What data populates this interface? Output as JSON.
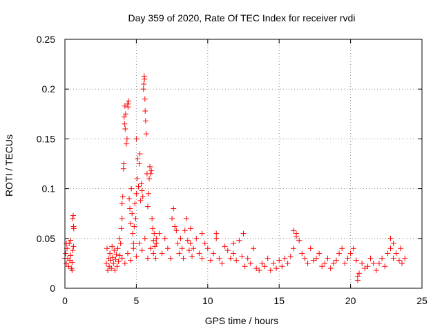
{
  "chart_data": {
    "type": "scatter",
    "title": "Day 359 of 2020, Rate Of TEC Index for receiver rvdi",
    "xlabel": "GPS time / hours",
    "ylabel": "ROTI / TECUs",
    "xlim": [
      0,
      25
    ],
    "ylim": [
      0,
      0.25
    ],
    "xticks": [
      0,
      5,
      10,
      15,
      20,
      25
    ],
    "xtick_labels": [
      "0",
      "5",
      "10",
      "15",
      "20",
      "25"
    ],
    "yticks": [
      0,
      0.05,
      0.1,
      0.15,
      0.2,
      0.25
    ],
    "ytick_labels": [
      "0",
      "0.05",
      "0.1",
      "0.15",
      "0.2",
      "0.25"
    ],
    "grid": true,
    "marker": "+",
    "series": [
      {
        "name": "ROTI",
        "color": "#ff0000",
        "points": [
          [
            0.0,
            0.03
          ],
          [
            0.05,
            0.035
          ],
          [
            0.1,
            0.025
          ],
          [
            0.15,
            0.04
          ],
          [
            0.2,
            0.03
          ],
          [
            0.25,
            0.022
          ],
          [
            0.3,
            0.045
          ],
          [
            0.35,
            0.028
          ],
          [
            0.4,
            0.033
          ],
          [
            0.45,
            0.02
          ],
          [
            0.5,
            0.026
          ],
          [
            0.55,
            0.038
          ],
          [
            0.6,
            0.042
          ],
          [
            0.6,
            0.062
          ],
          [
            0.55,
            0.07
          ],
          [
            0.58,
            0.073
          ],
          [
            0.62,
            0.06
          ],
          [
            0.5,
            0.018
          ],
          [
            0.4,
            0.048
          ],
          [
            0.1,
            0.045
          ],
          [
            2.9,
            0.025
          ],
          [
            2.95,
            0.04
          ],
          [
            3.0,
            0.018
          ],
          [
            3.05,
            0.03
          ],
          [
            3.1,
            0.022
          ],
          [
            3.15,
            0.035
          ],
          [
            3.2,
            0.028
          ],
          [
            3.25,
            0.02
          ],
          [
            3.3,
            0.042
          ],
          [
            3.35,
            0.031
          ],
          [
            3.4,
            0.025
          ],
          [
            3.45,
            0.038
          ],
          [
            3.5,
            0.018
          ],
          [
            3.55,
            0.029
          ],
          [
            3.6,
            0.034
          ],
          [
            3.65,
            0.022
          ],
          [
            3.7,
            0.04
          ],
          [
            3.75,
            0.027
          ],
          [
            3.8,
            0.05
          ],
          [
            3.85,
            0.033
          ],
          [
            3.9,
            0.045
          ],
          [
            3.95,
            0.06
          ],
          [
            4.0,
            0.07
          ],
          [
            4.0,
            0.085
          ],
          [
            4.05,
            0.092
          ],
          [
            4.1,
            0.12
          ],
          [
            4.12,
            0.125
          ],
          [
            4.15,
            0.172
          ],
          [
            4.17,
            0.165
          ],
          [
            4.2,
            0.183
          ],
          [
            4.22,
            0.16
          ],
          [
            4.25,
            0.175
          ],
          [
            4.3,
            0.145
          ],
          [
            4.35,
            0.15
          ],
          [
            4.4,
            0.185
          ],
          [
            4.42,
            0.182
          ],
          [
            4.45,
            0.188
          ],
          [
            4.5,
            0.09
          ],
          [
            4.55,
            0.08
          ],
          [
            4.6,
            0.065
          ],
          [
            4.65,
            0.1
          ],
          [
            4.7,
            0.075
          ],
          [
            4.75,
            0.055
          ],
          [
            4.8,
            0.045
          ],
          [
            4.85,
            0.062
          ],
          [
            4.9,
            0.085
          ],
          [
            4.95,
            0.07
          ],
          [
            5.0,
            0.095
          ],
          [
            5.0,
            0.15
          ],
          [
            5.05,
            0.11
          ],
          [
            5.1,
            0.13
          ],
          [
            5.15,
            0.102
          ],
          [
            5.2,
            0.125
          ],
          [
            5.25,
            0.135
          ],
          [
            5.3,
            0.088
          ],
          [
            5.35,
            0.105
          ],
          [
            5.4,
            0.098
          ],
          [
            5.45,
            0.092
          ],
          [
            5.5,
            0.2
          ],
          [
            5.52,
            0.205
          ],
          [
            5.55,
            0.213
          ],
          [
            5.57,
            0.21
          ],
          [
            5.6,
            0.19
          ],
          [
            5.62,
            0.178
          ],
          [
            5.65,
            0.168
          ],
          [
            5.7,
            0.155
          ],
          [
            5.75,
            0.115
          ],
          [
            5.8,
            0.082
          ],
          [
            5.85,
            0.095
          ],
          [
            5.9,
            0.11
          ],
          [
            5.95,
            0.122
          ],
          [
            6.0,
            0.115
          ],
          [
            6.05,
            0.118
          ],
          [
            6.1,
            0.07
          ],
          [
            6.15,
            0.06
          ],
          [
            6.2,
            0.048
          ],
          [
            6.25,
            0.055
          ],
          [
            6.3,
            0.042
          ],
          [
            6.35,
            0.03
          ],
          [
            6.4,
            0.05
          ],
          [
            4.0,
            0.03
          ],
          [
            4.2,
            0.025
          ],
          [
            4.4,
            0.035
          ],
          [
            4.6,
            0.028
          ],
          [
            4.8,
            0.04
          ],
          [
            5.0,
            0.032
          ],
          [
            5.2,
            0.045
          ],
          [
            5.4,
            0.038
          ],
          [
            5.6,
            0.05
          ],
          [
            5.8,
            0.03
          ],
          [
            6.0,
            0.04
          ],
          [
            6.2,
            0.035
          ],
          [
            6.4,
            0.045
          ],
          [
            6.6,
            0.055
          ],
          [
            6.8,
            0.035
          ],
          [
            7.0,
            0.05
          ],
          [
            7.2,
            0.04
          ],
          [
            7.4,
            0.03
          ],
          [
            7.5,
            0.07
          ],
          [
            7.6,
            0.08
          ],
          [
            7.7,
            0.062
          ],
          [
            7.8,
            0.058
          ],
          [
            7.9,
            0.045
          ],
          [
            8.0,
            0.035
          ],
          [
            8.1,
            0.05
          ],
          [
            8.2,
            0.04
          ],
          [
            8.3,
            0.03
          ],
          [
            8.4,
            0.058
          ],
          [
            8.5,
            0.07
          ],
          [
            8.6,
            0.048
          ],
          [
            8.7,
            0.038
          ],
          [
            8.8,
            0.045
          ],
          [
            8.9,
            0.032
          ],
          [
            9.0,
            0.04
          ],
          [
            9.2,
            0.05
          ],
          [
            9.4,
            0.035
          ],
          [
            9.6,
            0.03
          ],
          [
            9.8,
            0.045
          ],
          [
            10.0,
            0.04
          ],
          [
            10.2,
            0.028
          ],
          [
            10.4,
            0.035
          ],
          [
            10.6,
            0.05
          ],
          [
            10.8,
            0.03
          ],
          [
            11.0,
            0.025
          ],
          [
            11.2,
            0.042
          ],
          [
            11.4,
            0.038
          ],
          [
            11.6,
            0.03
          ],
          [
            11.8,
            0.035
          ],
          [
            12.0,
            0.028
          ],
          [
            12.2,
            0.048
          ],
          [
            12.4,
            0.032
          ],
          [
            12.6,
            0.022
          ],
          [
            12.8,
            0.03
          ],
          [
            13.0,
            0.025
          ],
          [
            13.2,
            0.04
          ],
          [
            13.4,
            0.02
          ],
          [
            13.6,
            0.018
          ],
          [
            13.8,
            0.025
          ],
          [
            14.0,
            0.022
          ],
          [
            14.2,
            0.03
          ],
          [
            14.4,
            0.018
          ],
          [
            14.6,
            0.025
          ],
          [
            14.8,
            0.02
          ],
          [
            15.0,
            0.028
          ],
          [
            15.2,
            0.022
          ],
          [
            15.4,
            0.03
          ],
          [
            15.6,
            0.025
          ],
          [
            15.8,
            0.032
          ],
          [
            16.0,
            0.04
          ],
          [
            16.2,
            0.055
          ],
          [
            16.4,
            0.048
          ],
          [
            16.6,
            0.035
          ],
          [
            16.8,
            0.03
          ],
          [
            17.0,
            0.025
          ],
          [
            17.2,
            0.04
          ],
          [
            17.4,
            0.028
          ],
          [
            17.6,
            0.03
          ],
          [
            17.8,
            0.035
          ],
          [
            18.0,
            0.022
          ],
          [
            18.2,
            0.025
          ],
          [
            18.4,
            0.03
          ],
          [
            18.6,
            0.02
          ],
          [
            18.8,
            0.025
          ],
          [
            19.0,
            0.028
          ],
          [
            19.2,
            0.035
          ],
          [
            19.4,
            0.04
          ],
          [
            19.6,
            0.025
          ],
          [
            19.8,
            0.03
          ],
          [
            20.0,
            0.035
          ],
          [
            20.2,
            0.04
          ],
          [
            20.4,
            0.028
          ],
          [
            20.6,
            0.015
          ],
          [
            20.8,
            0.025
          ],
          [
            21.0,
            0.02
          ],
          [
            21.2,
            0.022
          ],
          [
            21.4,
            0.03
          ],
          [
            21.6,
            0.025
          ],
          [
            21.8,
            0.018
          ],
          [
            22.0,
            0.025
          ],
          [
            22.2,
            0.03
          ],
          [
            22.4,
            0.022
          ],
          [
            22.6,
            0.035
          ],
          [
            22.8,
            0.04
          ],
          [
            23.0,
            0.03
          ],
          [
            23.2,
            0.035
          ],
          [
            23.4,
            0.028
          ],
          [
            23.6,
            0.025
          ],
          [
            23.8,
            0.03
          ],
          [
            23.5,
            0.04
          ],
          [
            23.0,
            0.045
          ],
          [
            22.8,
            0.05
          ],
          [
            20.5,
            0.008
          ],
          [
            20.5,
            0.012
          ],
          [
            16.2,
            0.052
          ],
          [
            16.0,
            0.058
          ],
          [
            12.5,
            0.055
          ],
          [
            11.8,
            0.045
          ],
          [
            10.6,
            0.055
          ],
          [
            9.6,
            0.055
          ],
          [
            8.8,
            0.06
          ]
        ]
      }
    ]
  }
}
